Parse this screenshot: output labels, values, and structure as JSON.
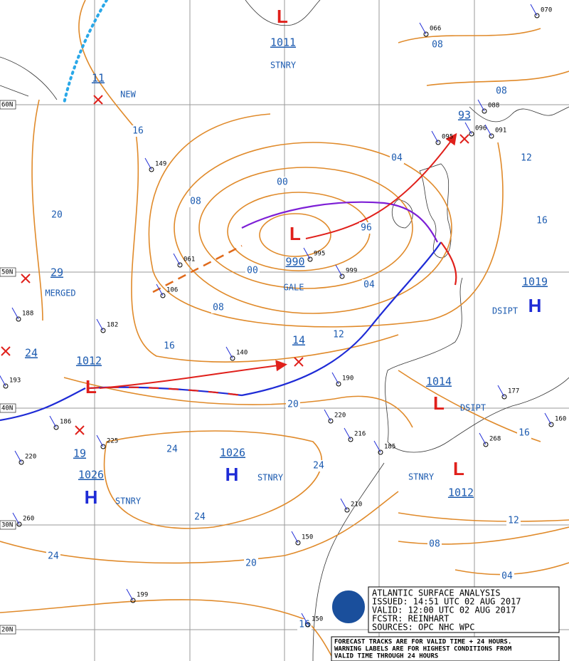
{
  "title_box": {
    "title": "ATLANTIC SURFACE ANALYSIS",
    "issued": "ISSUED: 14:51 UTC 02 AUG 2017",
    "valid": "VALID: 12:00 UTC 02 AUG 2017",
    "forecaster": "FCSTR: REINHART",
    "sources": "SOURCES: OPC NHC WPC"
  },
  "footnote": [
    "FORECAST TRACKS ARE FOR VALID TIME + 24 HOURS.",
    "WARNING LABELS ARE FOR HIGHEST CONDITIONS FROM",
    "VALID TIME THROUGH 24 HOURS"
  ],
  "latitude_labels": [
    "60N",
    "50N",
    "40N",
    "30N",
    "20N"
  ],
  "centers": [
    {
      "symbol": "L",
      "pressure": "1011",
      "status": "STNRY"
    },
    {
      "symbol": "X",
      "pressure": "11",
      "status": "NEW"
    },
    {
      "symbol": "L",
      "pressure": "990",
      "status": "GALE"
    },
    {
      "symbol": "X",
      "pressure": "29",
      "status": "MERGED"
    },
    {
      "symbol": "H",
      "pressure": "1019",
      "status": "DSIPT"
    },
    {
      "symbol": "X",
      "pressure": "14"
    },
    {
      "symbol": "X",
      "pressure": "24"
    },
    {
      "symbol": "L",
      "pressure": "1012"
    },
    {
      "symbol": "L",
      "pressure": "1014",
      "status": "DSIPT"
    },
    {
      "symbol": "H",
      "pressure": "1026",
      "status": "STNRY"
    },
    {
      "symbol": "X",
      "pressure": "19"
    },
    {
      "symbol": "H",
      "pressure": "1026",
      "status": "STNRY"
    },
    {
      "symbol": "L",
      "pressure": "1012",
      "status": "STNRY"
    },
    {
      "symbol": "X",
      "pressure": "93"
    }
  ],
  "isobar_labels": [
    "16",
    "20",
    "08",
    "00",
    "04",
    "08",
    "08",
    "12",
    "16",
    "96",
    "00",
    "04",
    "08",
    "12",
    "16",
    "20",
    "24",
    "24",
    "24",
    "24",
    "20",
    "16",
    "12",
    "08",
    "04",
    "16"
  ],
  "station_pressures": [
    "066",
    "088",
    "095",
    "096",
    "091",
    "149",
    "061",
    "995",
    "999",
    "106",
    "182",
    "140",
    "188",
    "190",
    "220",
    "216",
    "185",
    "225",
    "220",
    "186",
    "193",
    "260",
    "210",
    "150",
    "199",
    "177",
    "160",
    "268",
    "070",
    "150"
  ]
}
